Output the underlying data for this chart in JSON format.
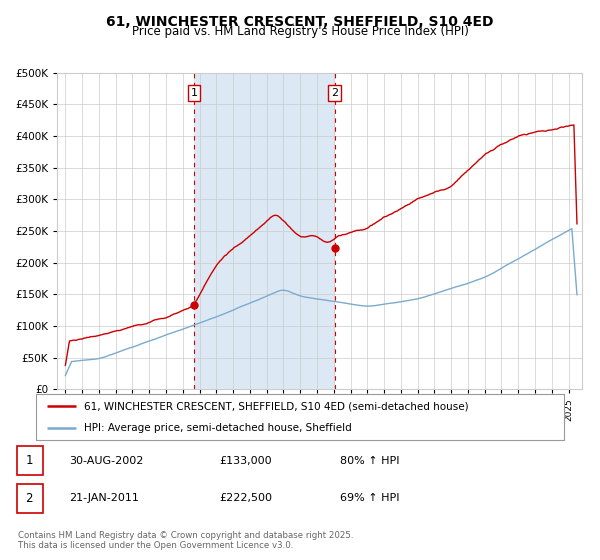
{
  "title": "61, WINCHESTER CRESCENT, SHEFFIELD, S10 4ED",
  "subtitle": "Price paid vs. HM Land Registry's House Price Index (HPI)",
  "title_fontsize": 10,
  "subtitle_fontsize": 8.5,
  "background_color": "#ffffff",
  "grid_color": "#cccccc",
  "shade_color": "#dce9f5",
  "red_line_color": "#cc0000",
  "blue_line_color": "#7aabcf",
  "ylim": [
    0,
    500000
  ],
  "yticks": [
    0,
    50000,
    100000,
    150000,
    200000,
    250000,
    300000,
    350000,
    400000,
    450000,
    500000
  ],
  "sale1_date": 2002.66,
  "sale1_price": 133000,
  "sale2_date": 2011.05,
  "sale2_price": 222500,
  "legend_line1": "61, WINCHESTER CRESCENT, SHEFFIELD, S10 4ED (semi-detached house)",
  "legend_line2": "HPI: Average price, semi-detached house, Sheffield",
  "table_row1": [
    "1",
    "30-AUG-2002",
    "£133,000",
    "80% ↑ HPI"
  ],
  "table_row2": [
    "2",
    "21-JAN-2011",
    "£222,500",
    "69% ↑ HPI"
  ],
  "footnote": "Contains HM Land Registry data © Crown copyright and database right 2025.\nThis data is licensed under the Open Government Licence v3.0.",
  "xmin": 1994.5,
  "xmax": 2025.8
}
